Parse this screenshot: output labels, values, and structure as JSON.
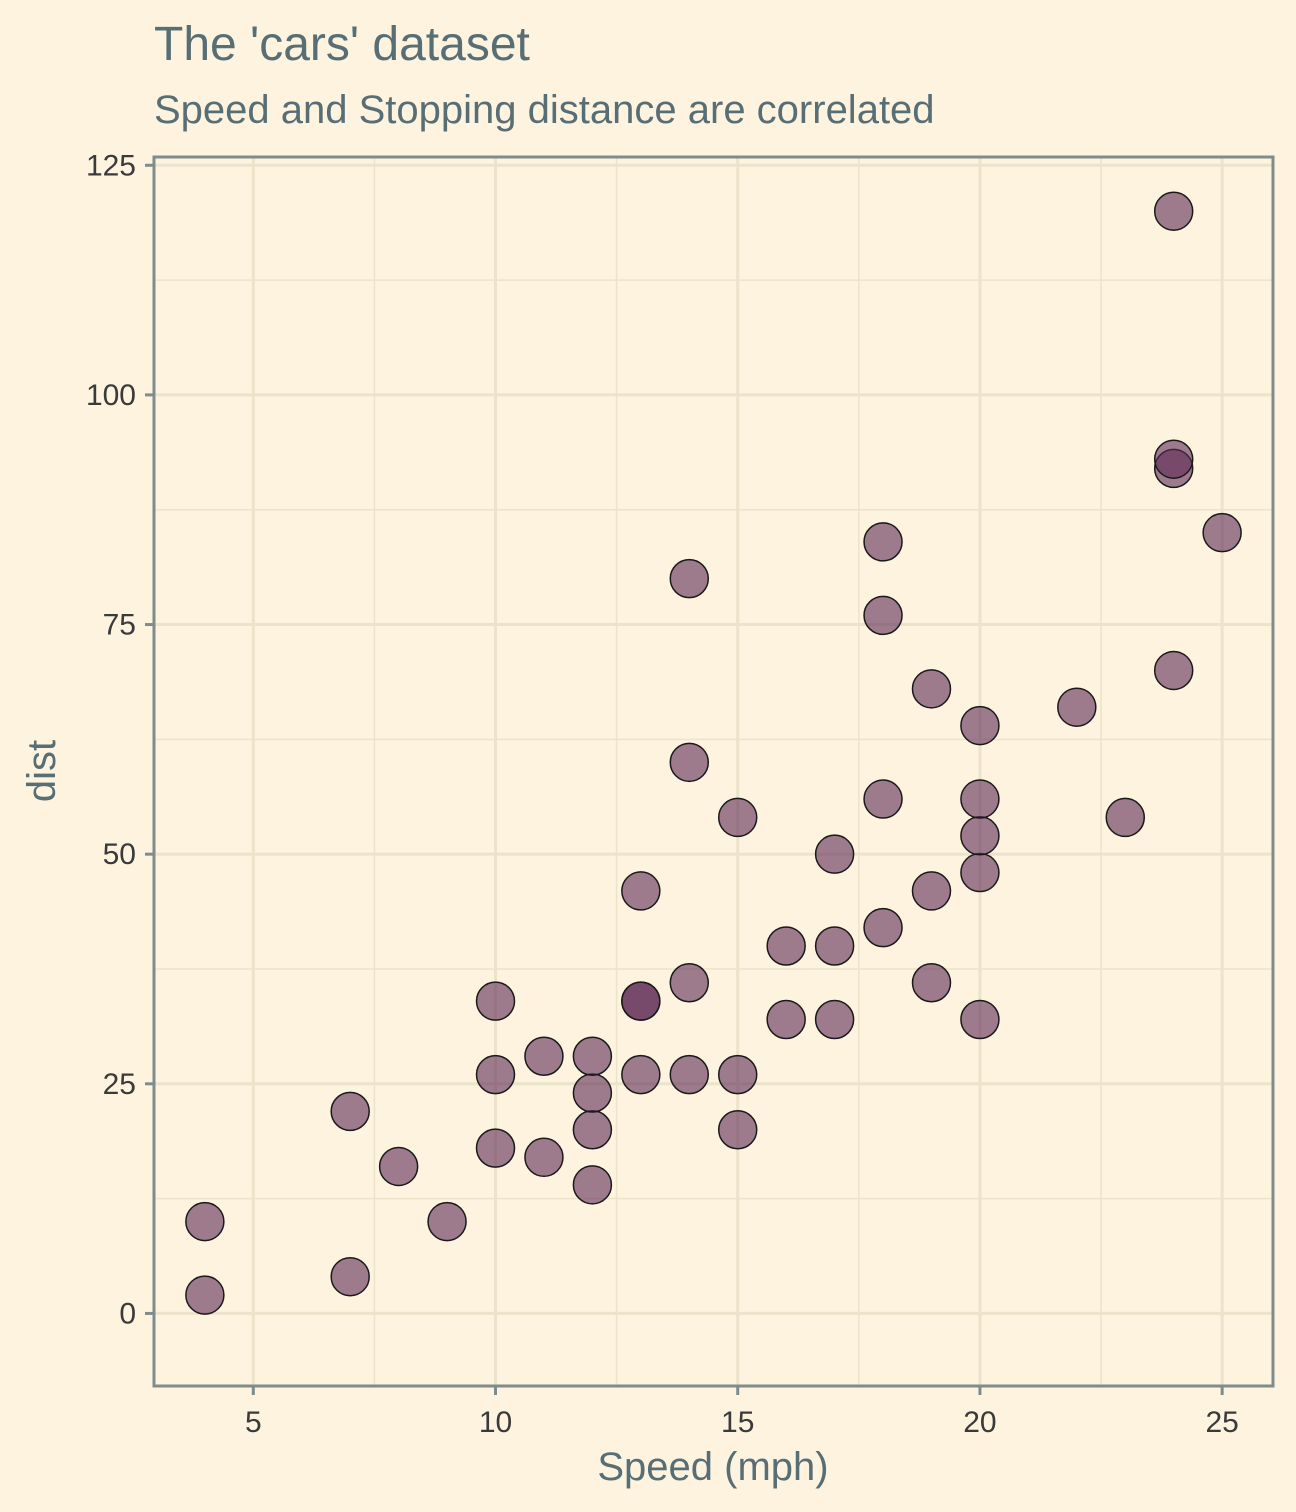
{
  "chart_data": {
    "type": "scatter",
    "title": "The 'cars' dataset",
    "subtitle": "Speed and Stopping distance are correlated",
    "xlabel": "Speed (mph)",
    "ylabel": "dist",
    "xlim": [
      2.95,
      26.05
    ],
    "ylim": [
      -7.9,
      125.9
    ],
    "xticks": [
      5,
      10,
      15,
      20,
      25
    ],
    "yticks": [
      0,
      25,
      50,
      75,
      100,
      125
    ],
    "xminor": [
      7.5,
      12.5,
      17.5,
      22.5
    ],
    "yminor": [
      12.5,
      37.5,
      62.5,
      87.5,
      112.5
    ],
    "grid": true,
    "point_color": "#5e2a55",
    "x": [
      4,
      4,
      7,
      7,
      8,
      9,
      10,
      10,
      10,
      11,
      11,
      12,
      12,
      12,
      12,
      13,
      13,
      13,
      13,
      14,
      14,
      14,
      14,
      15,
      15,
      15,
      16,
      16,
      17,
      17,
      17,
      18,
      18,
      18,
      18,
      19,
      19,
      19,
      20,
      20,
      20,
      20,
      20,
      22,
      23,
      24,
      24,
      24,
      24,
      25
    ],
    "y": [
      2,
      10,
      4,
      22,
      16,
      10,
      18,
      26,
      34,
      17,
      28,
      14,
      20,
      24,
      28,
      26,
      34,
      34,
      46,
      26,
      36,
      60,
      80,
      20,
      26,
      54,
      32,
      40,
      32,
      40,
      50,
      42,
      56,
      76,
      84,
      36,
      46,
      68,
      32,
      48,
      52,
      56,
      64,
      66,
      54,
      70,
      92,
      93,
      120,
      85
    ]
  }
}
